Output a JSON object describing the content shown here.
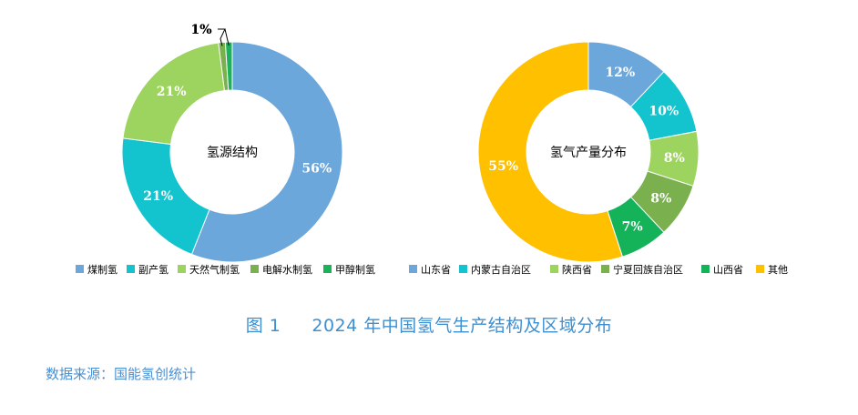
{
  "chart_data": [
    {
      "type": "pie",
      "center_label": "氢源结构",
      "categories": [
        "煤制氢",
        "副产氢",
        "天然气制氢",
        "电解水制氢",
        "甲醇制氢"
      ],
      "values": [
        56,
        21,
        21,
        1,
        1
      ],
      "value_labels": [
        "56%",
        "21%",
        "21%",
        "1%",
        "1%"
      ],
      "colors": [
        "#6ca7db",
        "#13c4cf",
        "#9dd35f",
        "#7ab04e",
        "#1ab25a"
      ],
      "legend_position": "bottom"
    },
    {
      "type": "pie",
      "center_label": "氢气产量分布",
      "categories": [
        "山东省",
        "内蒙古自治区",
        "陕西省",
        "宁夏回族自治区",
        "山西省",
        "其他"
      ],
      "values": [
        12,
        10,
        8,
        8,
        7,
        55
      ],
      "value_labels": [
        "12%",
        "10%",
        "8%",
        "8%",
        "7%",
        "55%"
      ],
      "colors": [
        "#6ca7db",
        "#13c4cf",
        "#9dd35f",
        "#7ab04e",
        "#14b35a",
        "#ffc000"
      ],
      "legend_position": "bottom"
    }
  ],
  "caption": {
    "number": "图 1",
    "title": "2024 年中国氢气生产结构及区域分布"
  },
  "source": "数据来源：国能氢创统计"
}
